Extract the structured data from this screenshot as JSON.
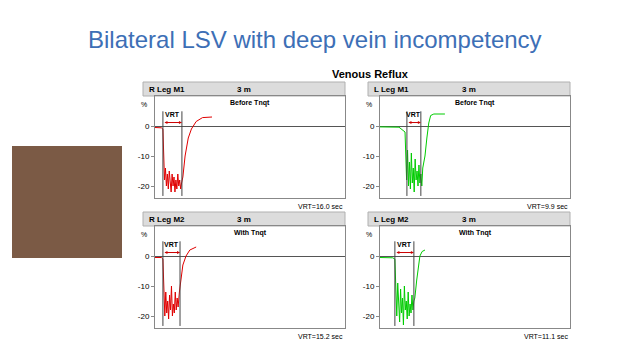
{
  "title": "Bilateral LSV with deep vein incompetency",
  "chart_title": "Venous Reflux",
  "chart_data": [
    {
      "type": "line",
      "title": "R Leg M1",
      "subtitle": "3 m",
      "label": "Before Tnqt",
      "vrt_label": "VRT",
      "vrt_text": "VRT=16.0 sec",
      "vrt_lines": [
        2.5,
        8.5
      ],
      "ylabel": "%",
      "xlim": [
        0,
        60
      ],
      "ylim": [
        -24,
        10
      ],
      "yticks": [
        0,
        -10,
        -20
      ],
      "grid": false,
      "tick_labels": "y",
      "x": [
        0,
        1,
        2,
        2.5,
        2.7,
        3.0,
        3.3,
        3.6,
        3.9,
        4.2,
        4.5,
        4.8,
        5.1,
        5.4,
        5.7,
        6.0,
        6.3,
        6.6,
        6.9,
        7.2,
        7.5,
        7.8,
        8.1,
        8.4,
        8.8,
        9.5,
        10.5,
        11.5,
        13,
        15,
        18
      ],
      "series": [
        {
          "color": "#e00000",
          "values": [
            -0.5,
            -0.5,
            -0.6,
            -1,
            -13,
            -18,
            -14,
            -20,
            -16,
            -21,
            -15,
            -19,
            -22,
            -16,
            -20,
            -17,
            -22,
            -18,
            -21,
            -16,
            -20,
            -18,
            -21,
            -19,
            -17,
            -10,
            -4,
            -1,
            1.5,
            2.8,
            3
          ]
        }
      ]
    },
    {
      "type": "line",
      "title": "L Leg M1",
      "subtitle": "3 m",
      "label": "Before Tnqt",
      "vrt_label": "VRT",
      "vrt_text": "VRT=9.9 sec",
      "vrt_lines": [
        8.5,
        12.9
      ],
      "ylabel": "%",
      "xlim": [
        0,
        60
      ],
      "ylim": [
        -24,
        10
      ],
      "yticks": [
        0,
        -10,
        -20
      ],
      "grid": false,
      "tick_labels": "y",
      "x": [
        0,
        2,
        4,
        6,
        7.9,
        8.1,
        8.4,
        8.7,
        9.0,
        9.3,
        9.6,
        9.9,
        10.2,
        10.5,
        10.8,
        11.1,
        11.4,
        11.7,
        12.0,
        12.3,
        12.6,
        12.9,
        13.2,
        13.5,
        13.8,
        14.2,
        14.8,
        15.4,
        16,
        17,
        20.5
      ],
      "series": [
        {
          "color": "#00cc00",
          "values": [
            -0.3,
            -0.3,
            -0.3,
            -0.4,
            -2,
            -10,
            -18,
            -8,
            -20,
            -12,
            -21,
            -9,
            -19,
            -14,
            -22,
            -11,
            -18,
            -15,
            -20,
            -13,
            -19,
            -16,
            -20,
            -14,
            -12,
            -10,
            -4,
            1,
            3.5,
            4,
            4
          ]
        }
      ]
    },
    {
      "type": "line",
      "title": "R Leg M2",
      "subtitle": "3 m",
      "label": "With Tnqt",
      "vrt_label": "VRT",
      "vrt_text": "VRT=15.2 sec",
      "vrt_lines": [
        2.5,
        7.9
      ],
      "ylabel": "%",
      "xlim": [
        0,
        60
      ],
      "ylim": [
        -24,
        10
      ],
      "yticks": [
        0,
        -10,
        -20
      ],
      "grid": false,
      "tick_labels": "y",
      "x": [
        0,
        1,
        2,
        2.5,
        2.8,
        3.1,
        3.4,
        3.7,
        4.0,
        4.3,
        4.6,
        4.9,
        5.2,
        5.5,
        5.8,
        6.1,
        6.4,
        6.7,
        7.0,
        7.3,
        7.7,
        8.2,
        8.8,
        9.8,
        11,
        13
      ],
      "series": [
        {
          "color": "#e00000",
          "values": [
            -0.5,
            -0.5,
            -0.5,
            -1,
            -14,
            -20,
            -12,
            -19,
            -15,
            -21,
            -13,
            -18,
            -10,
            -20,
            -16,
            -19,
            -12,
            -18,
            -14,
            -17,
            -12,
            -7,
            -3,
            0,
            2,
            3
          ]
        }
      ]
    },
    {
      "type": "line",
      "title": "L Leg M2",
      "subtitle": "3 m",
      "label": "With Tnqt",
      "vrt_label": "VRT",
      "vrt_text": "VRT=11.1 sec",
      "vrt_lines": [
        4.7,
        10.7
      ],
      "ylabel": "%",
      "xlim": [
        0,
        60
      ],
      "ylim": [
        -24,
        10
      ],
      "yticks": [
        0,
        -10,
        -20
      ],
      "grid": false,
      "tick_labels": "y",
      "x": [
        0,
        2,
        4,
        4.7,
        5.0,
        5.3,
        5.6,
        5.9,
        6.2,
        6.5,
        6.8,
        7.1,
        7.4,
        7.7,
        8.0,
        8.3,
        8.6,
        8.9,
        9.2,
        9.5,
        9.8,
        10.1,
        10.4,
        10.7,
        11.0,
        11.6,
        12.2,
        12.6,
        13.3,
        14.2
      ],
      "series": [
        {
          "color": "#00cc00",
          "values": [
            -0.5,
            -0.5,
            -0.6,
            -1,
            -12,
            -20,
            -9,
            -17,
            -22,
            -11,
            -19,
            -14,
            -23,
            -10,
            -18,
            -15,
            -21,
            -12,
            -20,
            -16,
            -19,
            -13,
            -18,
            -15,
            -14,
            -8,
            -3,
            0,
            1.5,
            2
          ]
        }
      ]
    }
  ]
}
